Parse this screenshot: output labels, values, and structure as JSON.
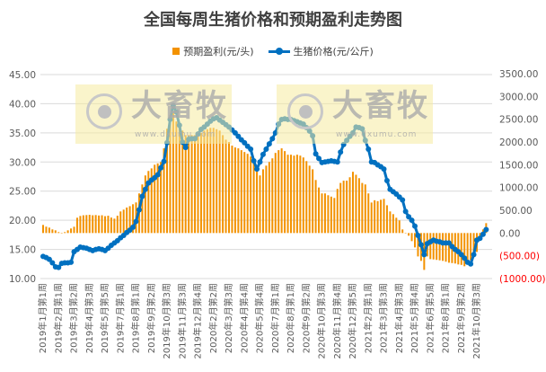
{
  "chart_data": {
    "type": "bar+line",
    "title": "全国每周生猪价格和预期盈利走势图",
    "legend_position": "top",
    "grid": true,
    "colors": {
      "profit": "#F39200",
      "price": "#0070C0",
      "negative_label": "#FF0000"
    },
    "x_tick_labels": [
      "2019年1月第1周",
      "2019年2月第1周",
      "2019年3月第2周",
      "2019年4月第3周",
      "2019年5月第5周",
      "2019年7月第1周",
      "2019年8月第1周",
      "2019年9月第2周",
      "2019年10月第3周",
      "2019年11月第3周",
      "2019年12月第4周",
      "2020年2月第2周",
      "2020年3月第3周",
      "2020年4月第4周",
      "2020年5月第4周",
      "2020年7月第1周",
      "2020年8月第1周",
      "2020年9月第2周",
      "2020年10月第3周",
      "2020年11月第4周",
      "2020年12月第5周",
      "2021年2月第1周",
      "2021年3月第3周",
      "2021年4月第3周",
      "2021年5月第4周",
      "2021年6月第5周",
      "2021年8月第1周",
      "2021年9月第2周",
      "2021年10月第3周"
    ],
    "left_axis": {
      "ylim": [
        10,
        45
      ],
      "ticks": [
        "10.00",
        "15.00",
        "20.00",
        "25.00",
        "30.00",
        "35.00",
        "40.00",
        "45.00"
      ]
    },
    "right_axis": {
      "ylim": [
        -1000,
        3500
      ],
      "ticks": [
        "(1000.00)",
        "(500.00)",
        "0.00",
        "500.00",
        "1000.00",
        "1500.00",
        "2000.00",
        "2500.00",
        "3000.00",
        "3500.00"
      ]
    },
    "series": [
      {
        "name": "预期盈利(元/头)",
        "axis": "right",
        "type": "bar",
        "values": [
          178,
          140,
          119,
          80,
          59,
          20,
          0,
          20,
          59,
          100,
          138,
          336,
          375,
          390,
          395,
          400,
          390,
          395,
          385,
          390,
          370,
          380,
          340,
          316,
          380,
          474,
          514,
          560,
          590,
          632,
          672,
          870,
          1067,
          1265,
          1363,
          1420,
          1500,
          1530,
          1560,
          1860,
          2290,
          2590,
          2650,
          2450,
          2350,
          2250,
          2150,
          2150,
          2150,
          2150,
          2150,
          2200,
          2250,
          2280,
          2310,
          2310,
          2280,
          2250,
          2150,
          2050,
          2000,
          1920,
          1880,
          1860,
          1820,
          1780,
          1740,
          1680,
          1560,
          1460,
          1265,
          1400,
          1480,
          1560,
          1640,
          1760,
          1820,
          1860,
          1800,
          1720,
          1720,
          1700,
          1720,
          1700,
          1660,
          1580,
          1480,
          1400,
          1165,
          1000,
          870,
          870,
          830,
          800,
          770,
          970,
          1100,
          1150,
          1150,
          1225,
          1345,
          1280,
          1205,
          1100,
          1067,
          870,
          670,
          720,
          700,
          730,
          750,
          610,
          474,
          415,
          336,
          277,
          79,
          0,
          -59,
          -178,
          -316,
          -514,
          -612,
          -810,
          -514,
          -573,
          -580,
          -590,
          -600,
          -612,
          -630,
          -652,
          -660,
          -670,
          -690,
          -700,
          -730,
          -650,
          -600,
          -514,
          -415,
          -118,
          79,
          217
        ]
      },
      {
        "name": "生猪价格(元/公斤)",
        "axis": "left",
        "type": "line",
        "values": [
          13.8,
          13.6,
          13.3,
          12.7,
          12.0,
          11.9,
          12.6,
          12.7,
          12.7,
          12.8,
          14.6,
          15.0,
          15.4,
          15.3,
          15.2,
          15.0,
          14.8,
          15.0,
          15.1,
          15.0,
          14.8,
          15.2,
          15.7,
          16.1,
          16.5,
          17.0,
          17.4,
          17.9,
          18.3,
          18.8,
          19.8,
          21.8,
          24.1,
          25.3,
          26.4,
          26.9,
          27.3,
          27.8,
          29.0,
          30.1,
          33.3,
          37.3,
          39.7,
          38.6,
          36.3,
          33.4,
          32.5,
          33.9,
          34.0,
          34.0,
          34.8,
          35.6,
          36.0,
          36.5,
          37.0,
          37.4,
          37.6,
          37.2,
          36.8,
          36.4,
          36.0,
          35.5,
          35.0,
          34.4,
          33.8,
          33.3,
          32.7,
          32.2,
          30.2,
          28.8,
          30.0,
          31.3,
          32.2,
          33.1,
          34.0,
          35.0,
          36.5,
          37.3,
          37.4,
          37.3,
          37.3,
          37.1,
          36.9,
          36.7,
          36.5,
          35.9,
          35.3,
          34.5,
          31.4,
          30.6,
          29.9,
          30.0,
          30.1,
          30.2,
          30.1,
          30.0,
          31.7,
          33.0,
          33.7,
          34.4,
          35.0,
          36.0,
          35.9,
          35.7,
          33.7,
          32.2,
          30.0,
          29.9,
          29.5,
          29.2,
          28.8,
          26.8,
          25.3,
          24.9,
          24.5,
          24.0,
          23.5,
          21.5,
          20.6,
          20.0,
          19.0,
          17.4,
          15.8,
          14.1,
          16.0,
          16.3,
          16.6,
          16.4,
          16.3,
          16.1,
          16.1,
          16.1,
          15.5,
          15.0,
          14.6,
          14.1,
          13.5,
          12.8,
          12.5,
          14.1,
          16.6,
          16.9,
          17.6,
          18.4
        ]
      }
    ]
  },
  "watermark": {
    "logo_text": "大畜牧",
    "url": "www.dxumu.com"
  }
}
